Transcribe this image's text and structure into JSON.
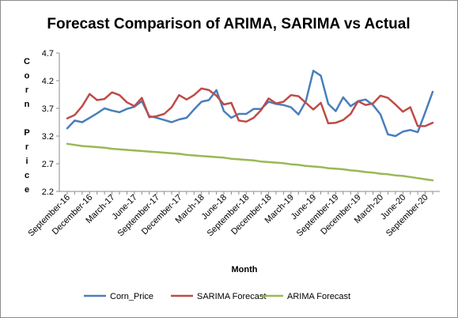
{
  "chart_data": {
    "type": "line",
    "title": "Forecast Comparison  of ARIMA, SARIMA vs Actual",
    "xlabel": "Month",
    "ylabel": "Corn Price",
    "ylabel_rows": [
      "Corn",
      "Price"
    ],
    "ylim": [
      2.2,
      4.7
    ],
    "yticks": [
      "2.2",
      "2.7",
      "3.2",
      "3.7",
      "4.2",
      "4.7"
    ],
    "x_tick_labels": [
      {
        "index": 0,
        "label": "September-16"
      },
      {
        "index": 3,
        "label": "December-16"
      },
      {
        "index": 6,
        "label": "March-17"
      },
      {
        "index": 9,
        "label": "June-17"
      },
      {
        "index": 12,
        "label": "September-17"
      },
      {
        "index": 15,
        "label": "December-17"
      },
      {
        "index": 18,
        "label": "March-18"
      },
      {
        "index": 21,
        "label": "June-18"
      },
      {
        "index": 24,
        "label": "September-18"
      },
      {
        "index": 27,
        "label": "December-18"
      },
      {
        "index": 30,
        "label": "March-19"
      },
      {
        "index": 33,
        "label": "June-19"
      },
      {
        "index": 36,
        "label": "September-19"
      },
      {
        "index": 39,
        "label": "December-19"
      },
      {
        "index": 42,
        "label": "March-20"
      },
      {
        "index": 45,
        "label": "June-20"
      },
      {
        "index": 48,
        "label": "September-20"
      }
    ],
    "n_points": 50,
    "grid": false,
    "legend": "bottom",
    "series": [
      {
        "name": "Corn_Price",
        "color": "#4a7ebb",
        "values": [
          3.34,
          3.48,
          3.45,
          3.53,
          3.61,
          3.7,
          3.66,
          3.63,
          3.69,
          3.73,
          3.83,
          3.56,
          3.53,
          3.49,
          3.45,
          3.5,
          3.53,
          3.68,
          3.82,
          3.85,
          4.03,
          3.65,
          3.53,
          3.6,
          3.6,
          3.69,
          3.69,
          3.82,
          3.78,
          3.76,
          3.72,
          3.59,
          3.83,
          4.38,
          4.29,
          3.78,
          3.65,
          3.9,
          3.74,
          3.83,
          3.86,
          3.76,
          3.59,
          3.23,
          3.2,
          3.28,
          3.31,
          3.27,
          3.63,
          4.0
        ]
      },
      {
        "name": "SARIMA Forecast",
        "color": "#be4b48",
        "values": [
          3.52,
          3.58,
          3.74,
          3.96,
          3.85,
          3.87,
          3.99,
          3.94,
          3.81,
          3.74,
          3.89,
          3.54,
          3.56,
          3.6,
          3.72,
          3.94,
          3.86,
          3.94,
          4.06,
          4.03,
          3.93,
          3.77,
          3.8,
          3.48,
          3.46,
          3.53,
          3.67,
          3.88,
          3.79,
          3.82,
          3.94,
          3.92,
          3.8,
          3.68,
          3.8,
          3.43,
          3.44,
          3.49,
          3.6,
          3.83,
          3.76,
          3.79,
          3.93,
          3.89,
          3.77,
          3.64,
          3.72,
          3.38,
          3.38,
          3.44
        ]
      },
      {
        "name": "ARIMA Forecast",
        "color": "#98b954",
        "values": [
          3.06,
          3.04,
          3.02,
          3.01,
          3.0,
          2.99,
          2.97,
          2.96,
          2.95,
          2.94,
          2.93,
          2.92,
          2.91,
          2.9,
          2.89,
          2.88,
          2.86,
          2.85,
          2.84,
          2.83,
          2.82,
          2.81,
          2.79,
          2.78,
          2.77,
          2.76,
          2.74,
          2.73,
          2.72,
          2.71,
          2.69,
          2.68,
          2.66,
          2.65,
          2.64,
          2.62,
          2.61,
          2.6,
          2.58,
          2.57,
          2.55,
          2.54,
          2.52,
          2.51,
          2.49,
          2.48,
          2.46,
          2.44,
          2.42,
          2.4
        ]
      }
    ]
  }
}
